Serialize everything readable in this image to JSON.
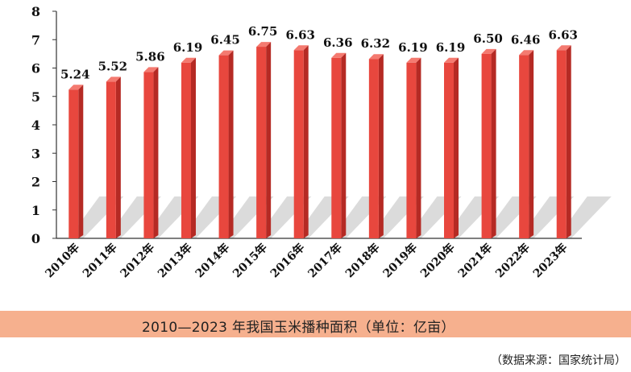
{
  "chart_data": {
    "type": "bar",
    "categories": [
      "2010年",
      "2011年",
      "2012年",
      "2013年",
      "2014年",
      "2015年",
      "2016年",
      "2017年",
      "2018年",
      "2019年",
      "2020年",
      "2021年",
      "2022年",
      "2023年"
    ],
    "values": [
      5.24,
      5.52,
      5.86,
      6.19,
      6.45,
      6.75,
      6.63,
      6.36,
      6.32,
      6.19,
      6.19,
      6.5,
      6.46,
      6.63
    ],
    "value_labels": [
      "5.24",
      "5.52",
      "5.86",
      "6.19",
      "6.45",
      "6.75",
      "6.63",
      "6.36",
      "6.32",
      "6.19",
      "6.19",
      "6.50",
      "6.46",
      "6.63"
    ],
    "y_ticks": [
      "0",
      "1",
      "2",
      "3",
      "4",
      "5",
      "6",
      "7",
      "8"
    ],
    "ylim": [
      0,
      8
    ],
    "title": "",
    "xlabel": "",
    "ylabel": "",
    "grid": false,
    "bar_color": "#e8473e",
    "bar_side_color": "#b52a24",
    "bar_top_color": "#f47a70"
  },
  "caption": "2010—2023 年我国玉米播种面积（单位：亿亩）",
  "source": "（数据来源：国家统计局）"
}
